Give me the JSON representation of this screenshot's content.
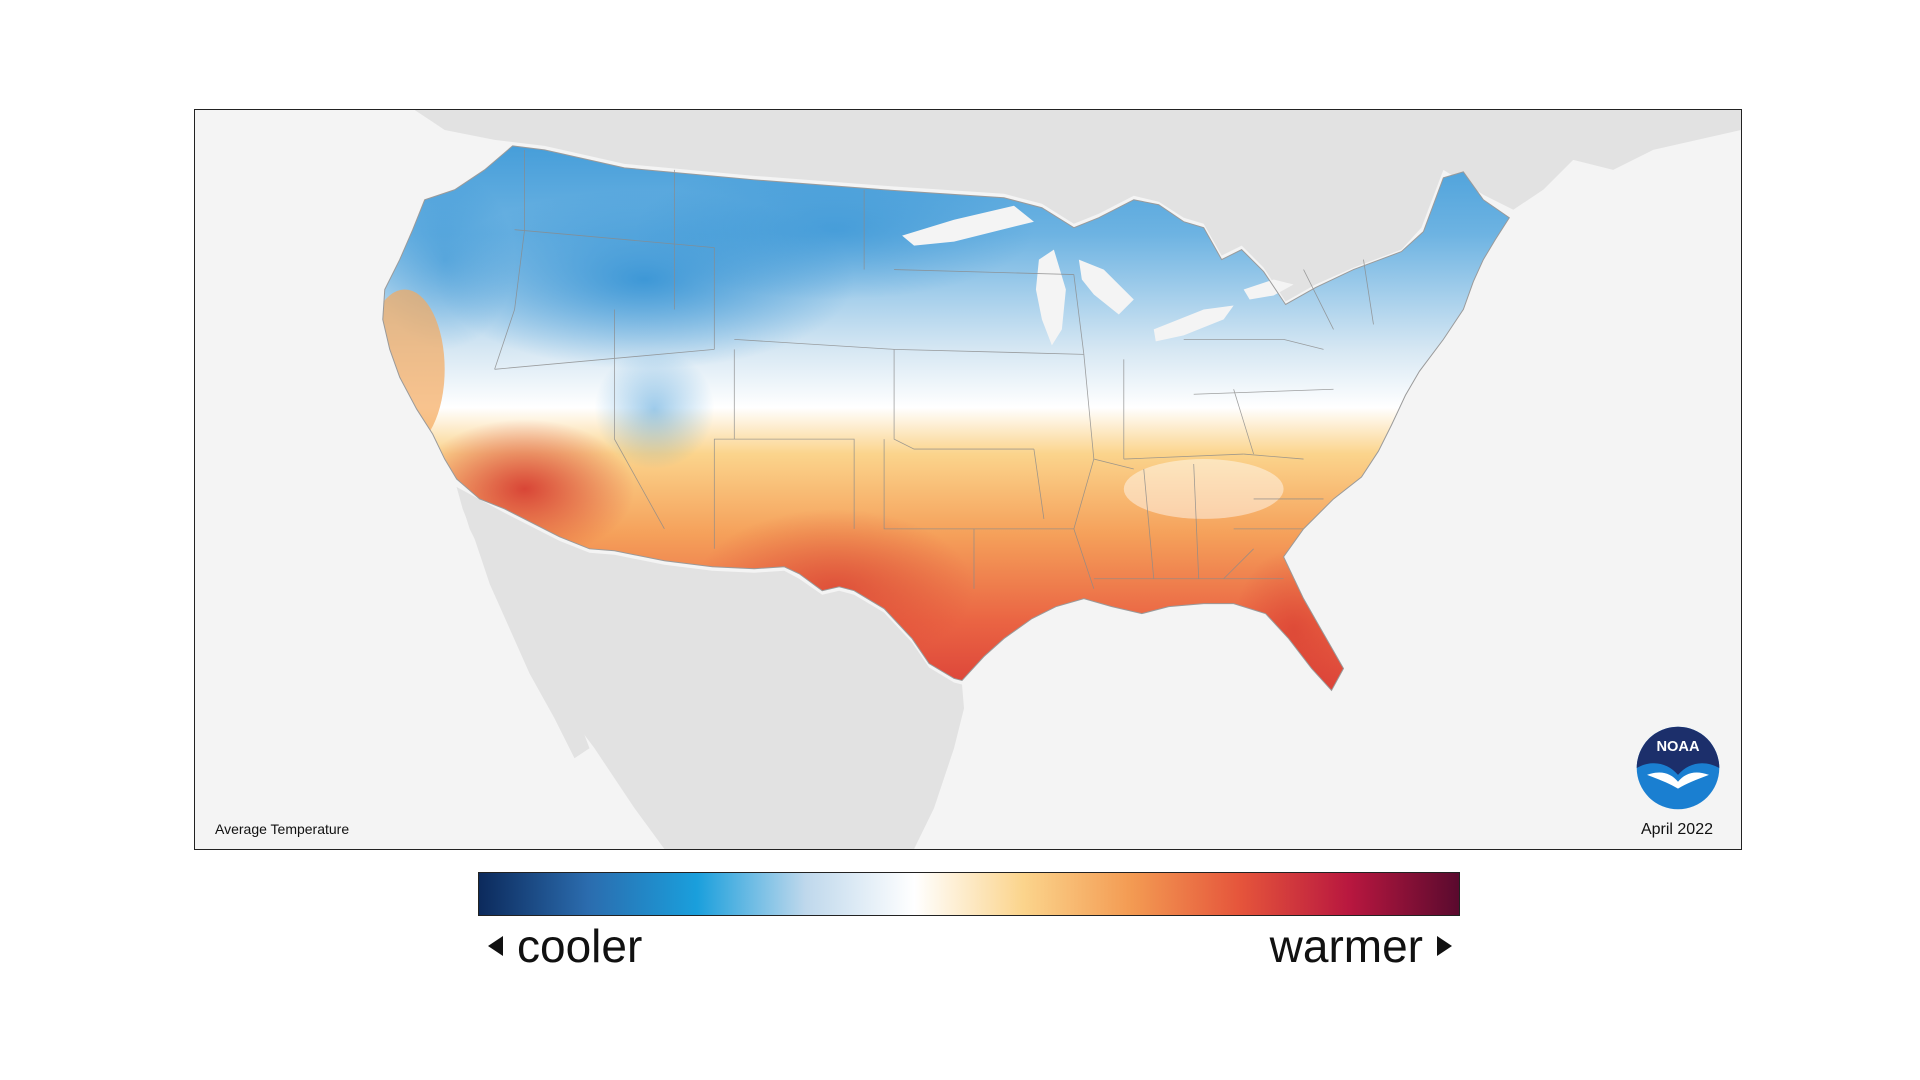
{
  "map": {
    "caption": "Average Temperature",
    "date": "April 2022",
    "logo_text": "NOAA"
  },
  "legend": {
    "low_label": "cooler",
    "high_label": "warmer",
    "colors": [
      "#0c2a5c",
      "#2b6cae",
      "#1a9fdc",
      "#bfd8ec",
      "#ffffff",
      "#fbd48c",
      "#f39a52",
      "#e5543b",
      "#b8173f",
      "#5a0a2e"
    ]
  },
  "colors": {
    "background_land": "#e2e2e2",
    "ocean": "#f4f4f4",
    "cool": "#3a9ad9",
    "warm": "#e5543b"
  }
}
